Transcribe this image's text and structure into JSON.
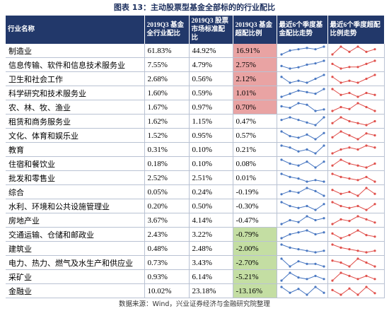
{
  "title": "图表 13：主动股票型基金全部标的的行业配比",
  "columns": [
    "行业名称",
    "2019Q3 基金全行业配比",
    "2019Q3 股票市场标准配比",
    "2019Q3 基金超配比例",
    "最近6个季度基金配比走势",
    "最近6个季度超配比例走势"
  ],
  "trend_colors": [
    "#4a78c2",
    "#e0504c"
  ],
  "rows": [
    {
      "name": "制造业",
      "fund": "61.83%",
      "market": "44.92%",
      "excess": "16.91%",
      "excess_fill": "#e9a3a3",
      "fund_trend": [
        3,
        6,
        7,
        8,
        7,
        9
      ],
      "excess_trend": [
        5,
        8,
        6,
        8,
        6,
        7
      ]
    },
    {
      "name": "信息传输、软件和信息技术服务业",
      "fund": "7.55%",
      "market": "4.79%",
      "excess": "2.75%",
      "excess_fill": "#e9a3a3",
      "fund_trend": [
        4,
        2,
        3,
        5,
        6,
        8
      ],
      "excess_trend": [
        6,
        3,
        4,
        4,
        6,
        8
      ]
    },
    {
      "name": "卫生和社会工作",
      "fund": "2.68%",
      "market": "0.56%",
      "excess": "2.12%",
      "excess_fill": "#e9a3a3",
      "fund_trend": [
        7,
        4,
        5,
        4,
        6,
        8
      ],
      "excess_trend": [
        7,
        4,
        5,
        4,
        6,
        8
      ]
    },
    {
      "name": "科学研究和技术服务业",
      "fund": "1.60%",
      "market": "0.59%",
      "excess": "1.01%",
      "excess_fill": "#e9a3a3",
      "fund_trend": [
        3,
        5,
        7,
        6,
        5,
        8
      ],
      "excess_trend": [
        8,
        5,
        6,
        4,
        6,
        5
      ]
    },
    {
      "name": "农、林、牧、渔业",
      "fund": "1.67%",
      "market": "0.97%",
      "excess": "0.70%",
      "excess_fill": "#e9a3a3",
      "fund_trend": [
        6,
        5,
        8,
        7,
        3,
        4
      ],
      "excess_trend": [
        4,
        6,
        5,
        8,
        6,
        4
      ]
    },
    {
      "name": "租赁和商务服务业",
      "fund": "1.62%",
      "market": "1.15%",
      "excess": "0.47%",
      "fund_trend": [
        6,
        7,
        6,
        5,
        4,
        7
      ],
      "excess_trend": [
        5,
        8,
        6,
        5,
        4,
        6
      ]
    },
    {
      "name": "文化、体育和娱乐业",
      "fund": "1.52%",
      "market": "0.95%",
      "excess": "0.57%",
      "fund_trend": [
        8,
        5,
        4,
        6,
        3,
        7
      ],
      "excess_trend": [
        4,
        7,
        5,
        3,
        6,
        5
      ]
    },
    {
      "name": "教育",
      "fund": "0.31%",
      "market": "0.10%",
      "excess": "0.21%",
      "fund_trend": [
        7,
        6,
        4,
        5,
        3,
        7
      ],
      "excess_trend": [
        3,
        5,
        6,
        5,
        7,
        6
      ]
    },
    {
      "name": "住宿和餐饮业",
      "fund": "0.18%",
      "market": "0.10%",
      "excess": "0.08%",
      "fund_trend": [
        7,
        5,
        4,
        6,
        3,
        6
      ],
      "excess_trend": [
        5,
        8,
        6,
        5,
        4,
        6
      ]
    },
    {
      "name": "批发和零售业",
      "fund": "2.52%",
      "market": "2.51%",
      "excess": "0.01%",
      "fund_trend": [
        8,
        6,
        5,
        3,
        4,
        3
      ],
      "excess_trend": [
        8,
        6,
        5,
        4,
        6,
        3
      ]
    },
    {
      "name": "综合",
      "fund": "0.05%",
      "market": "0.24%",
      "excess": "-0.19%",
      "fund_trend": [
        4,
        6,
        5,
        8,
        6,
        3
      ],
      "excess_trend": [
        6,
        4,
        5,
        3,
        7,
        4
      ]
    },
    {
      "name": "水利、环境和公共设施管理业",
      "fund": "0.20%",
      "market": "0.50%",
      "excess": "-0.30%",
      "fund_trend": [
        7,
        5,
        4,
        5,
        3,
        6
      ],
      "excess_trend": [
        7,
        5,
        4,
        5,
        3,
        6
      ]
    },
    {
      "name": "房地产业",
      "fund": "3.67%",
      "market": "4.14%",
      "excess": "-0.47%",
      "fund_trend": [
        4,
        6,
        5,
        8,
        6,
        7
      ],
      "excess_trend": [
        3,
        6,
        5,
        8,
        6,
        4
      ]
    },
    {
      "name": "交通运输、仓储和邮政业",
      "fund": "2.43%",
      "market": "3.22%",
      "excess": "-0.79%",
      "excess_fill": "#c4dea3",
      "fund_trend": [
        3,
        5,
        6,
        7,
        5,
        6
      ],
      "excess_trend": [
        6,
        3,
        5,
        8,
        5,
        4
      ]
    },
    {
      "name": "建筑业",
      "fund": "0.48%",
      "market": "2.48%",
      "excess": "-2.00%",
      "excess_fill": "#c4dea3",
      "fund_trend": [
        8,
        6,
        5,
        4,
        3,
        4
      ],
      "excess_trend": [
        8,
        6,
        5,
        4,
        3,
        4
      ]
    },
    {
      "name": "电力、热力、燃气及水生产和供应业",
      "fund": "0.73%",
      "market": "3.43%",
      "excess": "-2.70%",
      "excess_fill": "#c4dea3",
      "fund_trend": [
        6,
        3,
        5,
        4,
        4,
        3
      ],
      "excess_trend": [
        6,
        5,
        3,
        7,
        5,
        3
      ]
    },
    {
      "name": "采矿业",
      "fund": "0.93%",
      "market": "6.14%",
      "excess": "-5.21%",
      "excess_fill": "#c4dea3",
      "fund_trend": [
        3,
        8,
        5,
        4,
        6,
        4
      ],
      "excess_trend": [
        3,
        8,
        6,
        4,
        6,
        4
      ]
    },
    {
      "name": "金融业",
      "fund": "10.02%",
      "market": "23.18%",
      "excess": "-13.16%",
      "excess_fill": "#c4dea3",
      "fund_trend": [
        7,
        4,
        6,
        3,
        7,
        4
      ],
      "excess_trend": [
        6,
        3,
        7,
        3,
        8,
        4
      ]
    }
  ],
  "source": "数据来源：Wind，兴业证券经济与金融研究院整理"
}
